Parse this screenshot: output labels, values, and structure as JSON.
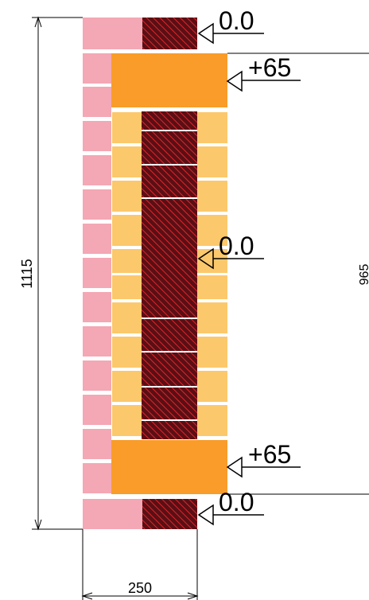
{
  "drawing": {
    "colors": {
      "pink_brick": "#f4a7b4",
      "light_brick": "#fcc86c",
      "orange_block": "#f99c2a",
      "hatch_core": "#5a0f14",
      "hatch_line": "#e0262c",
      "line": "#000000"
    },
    "dimensions": {
      "total_height": "1115",
      "width": "250",
      "right_height": "965"
    },
    "levels": {
      "top": "0.0",
      "upper": "+65",
      "middle": "0.0",
      "lower": "+65",
      "bottom": "0.0"
    }
  }
}
